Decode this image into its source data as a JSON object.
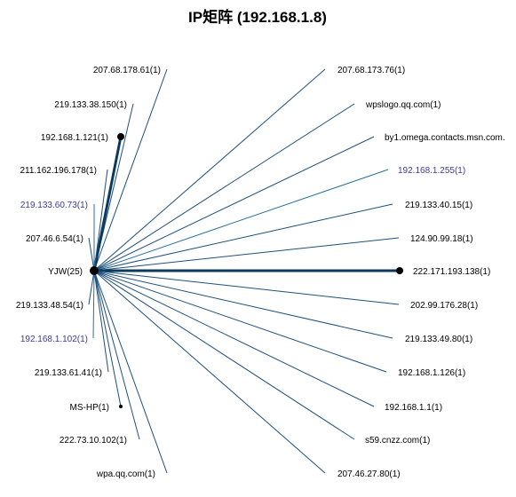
{
  "title": "IP矩阵 (192.168.1.8)",
  "colors": {
    "background": "#ffffff",
    "line_default": "#1f4f7c",
    "line_highlight": "#2a6fa0",
    "hub_line": "#0c3a5e",
    "text_default": "#000000",
    "text_highlight": "#3a3aa0",
    "dot": "#000000"
  },
  "hub": {
    "label": "YJW(25)"
  },
  "nodes_left": [
    {
      "label": "207.68.178.61(1)",
      "highlight": false,
      "heavy": false,
      "dot": false
    },
    {
      "label": "219.133.38.150(1)",
      "highlight": false,
      "heavy": false,
      "dot": false
    },
    {
      "label": "192.168.1.121(1)",
      "highlight": false,
      "heavy": true,
      "dot": true
    },
    {
      "label": "211.162.196.178(1)",
      "highlight": false,
      "heavy": false,
      "dot": false
    },
    {
      "label": "219.133.60.73(1)",
      "highlight": true,
      "heavy": false,
      "dot": false
    },
    {
      "label": "207.46.6.54(1)",
      "highlight": false,
      "heavy": false,
      "dot": false
    },
    {
      "label": "219.133.48.54(1)",
      "highlight": false,
      "heavy": false,
      "dot": false
    },
    {
      "label": "192.168.1.102(1)",
      "highlight": true,
      "heavy": false,
      "dot": false
    },
    {
      "label": "219.133.61.41(1)",
      "highlight": false,
      "heavy": false,
      "dot": false
    },
    {
      "label": "MS-HP(1)",
      "highlight": false,
      "heavy": false,
      "dot": true
    },
    {
      "label": "222.73.10.102(1)",
      "highlight": false,
      "heavy": false,
      "dot": false
    },
    {
      "label": "wpa.qq.com(1)",
      "highlight": false,
      "heavy": false,
      "dot": false
    }
  ],
  "nodes_right": [
    {
      "label": "207.68.173.76(1)",
      "highlight": false,
      "heavy": false,
      "dot": false
    },
    {
      "label": "wpslogo.qq.com(1)",
      "highlight": false,
      "heavy": false,
      "dot": false
    },
    {
      "label": "by1.omega.contacts.msn.com.",
      "highlight": false,
      "heavy": false,
      "dot": false
    },
    {
      "label": "192.168.1.255(1)",
      "highlight": true,
      "heavy": false,
      "dot": false
    },
    {
      "label": "219.133.40.15(1)",
      "highlight": false,
      "heavy": false,
      "dot": false
    },
    {
      "label": "124.90.99.18(1)",
      "highlight": false,
      "heavy": false,
      "dot": false
    },
    {
      "label": "222.171.193.138(1)",
      "highlight": false,
      "heavy": true,
      "dot": true
    },
    {
      "label": "202.99.176.28(1)",
      "highlight": false,
      "heavy": false,
      "dot": false
    },
    {
      "label": "219.133.49.80(1)",
      "highlight": false,
      "heavy": false,
      "dot": false
    },
    {
      "label": "192.168.1.126(1)",
      "highlight": false,
      "heavy": false,
      "dot": false
    },
    {
      "label": "192.168.1.1(1)",
      "highlight": false,
      "heavy": false,
      "dot": false
    },
    {
      "label": "s59.cnzz.com(1)",
      "highlight": false,
      "heavy": false,
      "dot": false
    },
    {
      "label": "207.46.27.80(1)",
      "highlight": false,
      "heavy": false,
      "dot": false
    }
  ]
}
